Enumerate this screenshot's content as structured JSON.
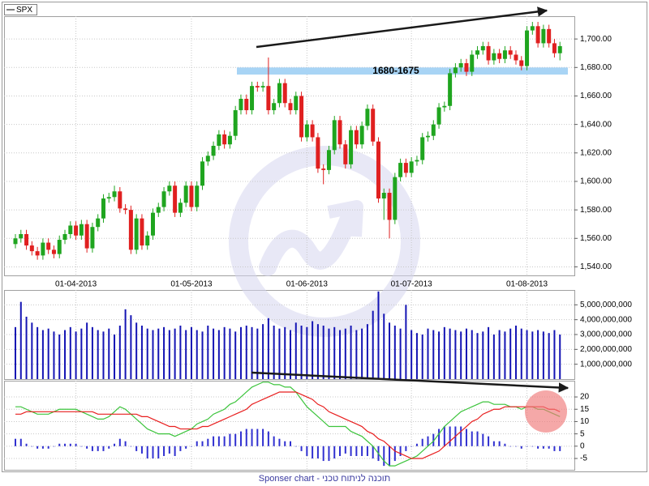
{
  "chart_data": [
    {
      "type": "candlestick",
      "name": "SPX",
      "up_color": "#1fa51f",
      "down_color": "#e02020",
      "grid": true,
      "categories": [
        null,
        null,
        null,
        null,
        null,
        null,
        null,
        null,
        null,
        null,
        null,
        "01-04-2013",
        null,
        null,
        null,
        null,
        null,
        null,
        null,
        null,
        null,
        null,
        null,
        null,
        null,
        null,
        null,
        null,
        null,
        null,
        null,
        null,
        "01-05-2013",
        null,
        null,
        null,
        null,
        null,
        null,
        null,
        null,
        null,
        null,
        null,
        null,
        null,
        null,
        null,
        null,
        null,
        null,
        null,
        null,
        "01-06-2013",
        null,
        null,
        null,
        null,
        null,
        null,
        null,
        null,
        null,
        null,
        null,
        null,
        null,
        null,
        null,
        null,
        null,
        null,
        "01-07-2013",
        null,
        null,
        null,
        null,
        null,
        null,
        null,
        null,
        null,
        null,
        null,
        null,
        null,
        null,
        null,
        null,
        null,
        null,
        null,
        null,
        "01-08-2013",
        null,
        null,
        null,
        null,
        null,
        null
      ],
      "open": [
        1556,
        1560,
        1563,
        1555,
        1551,
        1548,
        1557,
        1552,
        1549,
        1559,
        1563,
        1569,
        1562,
        1570,
        1553,
        1568,
        1574,
        1588,
        1589,
        1593,
        1581,
        1580,
        1552,
        1574,
        1555,
        1562,
        1578,
        1582,
        1593,
        1597,
        1578,
        1585,
        1597,
        1582,
        1597,
        1614,
        1618,
        1625,
        1633,
        1626,
        1632,
        1650,
        1658,
        1650,
        1667,
        1666,
        1667,
        1650,
        1655,
        1669,
        1655,
        1650,
        1660,
        1631,
        1640,
        1631,
        1609,
        1608,
        1622,
        1643,
        1626,
        1612,
        1636,
        1626,
        1639,
        1651,
        1628,
        1588,
        1592,
        1573,
        1603,
        1613,
        1606,
        1614,
        1615,
        1631,
        1632,
        1640,
        1652,
        1653,
        1676,
        1680,
        1683,
        1677,
        1689,
        1692,
        1695,
        1685,
        1690,
        1686,
        1692,
        1689,
        1685,
        1681,
        1706,
        1709,
        1697,
        1707,
        1697,
        1690
      ],
      "high": [
        1563,
        1566,
        1566,
        1558,
        1554,
        1560,
        1560,
        1555,
        1562,
        1566,
        1572,
        1572,
        1573,
        1573,
        1571,
        1577,
        1591,
        1592,
        1597,
        1596,
        1584,
        1583,
        1577,
        1577,
        1565,
        1581,
        1585,
        1596,
        1600,
        1600,
        1588,
        1600,
        1600,
        1600,
        1617,
        1621,
        1628,
        1636,
        1636,
        1635,
        1653,
        1661,
        1661,
        1670,
        1670,
        1670,
        1687,
        1658,
        1672,
        1672,
        1658,
        1663,
        1663,
        1643,
        1643,
        1634,
        1612,
        1625,
        1646,
        1646,
        1629,
        1639,
        1639,
        1642,
        1654,
        1654,
        1631,
        1595,
        1595,
        1606,
        1616,
        1616,
        1617,
        1618,
        1634,
        1635,
        1643,
        1655,
        1656,
        1679,
        1683,
        1686,
        1686,
        1692,
        1695,
        1698,
        1698,
        1693,
        1693,
        1695,
        1695,
        1692,
        1688,
        1709,
        1712,
        1712,
        1710,
        1710,
        1700,
        1698
      ],
      "low": [
        1553,
        1557,
        1552,
        1548,
        1545,
        1545,
        1549,
        1546,
        1546,
        1556,
        1560,
        1559,
        1559,
        1550,
        1550,
        1565,
        1571,
        1585,
        1586,
        1578,
        1577,
        1549,
        1549,
        1552,
        1552,
        1559,
        1575,
        1579,
        1590,
        1575,
        1575,
        1582,
        1579,
        1579,
        1594,
        1611,
        1615,
        1622,
        1623,
        1623,
        1629,
        1647,
        1647,
        1647,
        1663,
        1663,
        1647,
        1647,
        1652,
        1652,
        1647,
        1647,
        1628,
        1628,
        1628,
        1606,
        1598,
        1605,
        1619,
        1623,
        1609,
        1609,
        1623,
        1623,
        1636,
        1625,
        1585,
        1573,
        1560,
        1570,
        1600,
        1603,
        1603,
        1611,
        1612,
        1628,
        1629,
        1637,
        1649,
        1650,
        1673,
        1677,
        1674,
        1674,
        1686,
        1689,
        1682,
        1682,
        1683,
        1683,
        1686,
        1682,
        1678,
        1678,
        1703,
        1694,
        1694,
        1694,
        1687,
        1685
      ],
      "close": [
        1560,
        1563,
        1555,
        1551,
        1548,
        1557,
        1552,
        1549,
        1559,
        1563,
        1569,
        1562,
        1570,
        1553,
        1568,
        1574,
        1588,
        1589,
        1593,
        1581,
        1580,
        1552,
        1574,
        1555,
        1562,
        1578,
        1582,
        1593,
        1597,
        1578,
        1585,
        1597,
        1582,
        1597,
        1614,
        1618,
        1625,
        1633,
        1626,
        1632,
        1650,
        1658,
        1650,
        1667,
        1666,
        1667,
        1650,
        1655,
        1669,
        1655,
        1650,
        1660,
        1631,
        1640,
        1631,
        1609,
        1608,
        1622,
        1643,
        1626,
        1612,
        1636,
        1626,
        1639,
        1651,
        1628,
        1588,
        1592,
        1573,
        1603,
        1613,
        1606,
        1614,
        1615,
        1631,
        1632,
        1640,
        1652,
        1653,
        1676,
        1680,
        1683,
        1677,
        1689,
        1692,
        1695,
        1685,
        1690,
        1686,
        1692,
        1689,
        1685,
        1681,
        1706,
        1709,
        1697,
        1707,
        1697,
        1690,
        1695
      ],
      "ylim": [
        1534,
        1716
      ],
      "yticks": [
        {
          "value": 1540,
          "label": "1,540.00"
        },
        {
          "value": 1560,
          "label": "1,560.00"
        },
        {
          "value": 1580,
          "label": "1,580.00"
        },
        {
          "value": 1600,
          "label": "1,600.00"
        },
        {
          "value": 1620,
          "label": "1,620.00"
        },
        {
          "value": 1640,
          "label": "1,640.00"
        },
        {
          "value": 1660,
          "label": "1,660.00"
        },
        {
          "value": 1680,
          "label": "1,680.00"
        },
        {
          "value": 1700,
          "label": "1,700.00"
        }
      ],
      "zone": {
        "label": "1680-1675",
        "high": 1680,
        "low": 1675,
        "color": "#a8d4f5"
      }
    },
    {
      "type": "bar",
      "color": "#1414b4",
      "grid": true,
      "values": [
        3500000000.0,
        5200000000.0,
        4200000000.0,
        3800000000.0,
        3500000000.0,
        3300000000.0,
        3400000000.0,
        3200000000.0,
        3000000000.0,
        3300000000.0,
        3500000000.0,
        3200000000.0,
        3400000000.0,
        3800000000.0,
        3500000000.0,
        3300000000.0,
        3200000000.0,
        3400000000.0,
        3000000000.0,
        3600000000.0,
        4700000000.0,
        4300000000.0,
        3800000000.0,
        3600000000.0,
        3400000000.0,
        3300000000.0,
        3400000000.0,
        3500000000.0,
        3300000000.0,
        3400000000.0,
        3600000000.0,
        3300000000.0,
        3500000000.0,
        3300000000.0,
        3200000000.0,
        3600000000.0,
        3400000000.0,
        3300000000.0,
        3500000000.0,
        3400000000.0,
        3200000000.0,
        3500000000.0,
        3600000000.0,
        3500000000.0,
        3400000000.0,
        3700000000.0,
        4100000000.0,
        3600000000.0,
        3400000000.0,
        3500000000.0,
        3300000000.0,
        3800000000.0,
        3600000000.0,
        3500000000.0,
        3900000000.0,
        3700000000.0,
        3600000000.0,
        3400000000.0,
        3500000000.0,
        3300000000.0,
        3400000000.0,
        3600000000.0,
        3300000000.0,
        3400000000.0,
        3700000000.0,
        4600000000.0,
        5900000000.0,
        4400000000.0,
        3800000000.0,
        3600000000.0,
        3400000000.0,
        5000000000.0,
        3300000000.0,
        3100000000.0,
        3000000000.0,
        3400000000.0,
        3300000000.0,
        3200000000.0,
        3500000000.0,
        3400000000.0,
        3300000000.0,
        3200000000.0,
        3400000000.0,
        3300000000.0,
        3100000000.0,
        3200000000.0,
        3500000000.0,
        3000000000.0,
        3300000000.0,
        3200000000.0,
        3400000000.0,
        3600000000.0,
        3400000000.0,
        3300000000.0,
        3200000000.0,
        3300000000.0,
        3200000000.0,
        3100000000.0,
        3300000000.0,
        3000000000.0
      ],
      "ylim": [
        0,
        6000000000
      ],
      "yticks": [
        {
          "value": 1000000000,
          "label": "1,000,000,000"
        },
        {
          "value": 2000000000,
          "label": "2,000,000,000"
        },
        {
          "value": 3000000000,
          "label": "3,000,000,000"
        },
        {
          "value": 4000000000,
          "label": "4,000,000,000"
        },
        {
          "value": 5000000000,
          "label": "5,000,000,000"
        }
      ]
    },
    {
      "type": "macd",
      "grid": true,
      "series": [
        {
          "color": "#3cc43c",
          "values": [
            16,
            16,
            15,
            14,
            13,
            13,
            13,
            14,
            15,
            15,
            15,
            15,
            14,
            13,
            12,
            11,
            11,
            12,
            14,
            16,
            15,
            13,
            11,
            9,
            7,
            6,
            5,
            5,
            5,
            4,
            5,
            6,
            7,
            9,
            10,
            11,
            13,
            14,
            15,
            17,
            18,
            20,
            22,
            24,
            25,
            26,
            26,
            25,
            25,
            24,
            24,
            22,
            19,
            16,
            14,
            12,
            10,
            8,
            8,
            8,
            8,
            6,
            5,
            4,
            2,
            0,
            -3,
            -6,
            -8,
            -8,
            -7,
            -6,
            -5,
            -4,
            -2,
            0,
            2,
            5,
            8,
            10,
            12,
            14,
            15,
            16,
            17,
            18,
            18,
            17,
            17,
            17,
            16,
            16,
            15,
            16,
            16,
            15,
            15,
            14,
            13,
            12
          ]
        },
        {
          "color": "#e81e1e",
          "values": [
            13,
            13,
            14,
            14,
            14,
            14,
            14,
            14,
            14,
            14,
            14,
            14,
            14,
            14,
            14,
            13,
            13,
            13,
            13,
            13,
            13,
            13,
            13,
            12,
            12,
            11,
            10,
            9,
            8,
            8,
            7,
            7,
            7,
            7,
            8,
            8,
            9,
            10,
            11,
            12,
            13,
            14,
            15,
            17,
            18,
            19,
            20,
            21,
            22,
            22,
            22,
            22,
            21,
            20,
            19,
            17,
            16,
            14,
            13,
            12,
            11,
            10,
            9,
            8,
            6,
            5,
            3,
            2,
            0,
            -2,
            -3,
            -4,
            -5,
            -5,
            -5,
            -4,
            -3,
            -2,
            0,
            2,
            4,
            6,
            8,
            10,
            11,
            13,
            14,
            15,
            15,
            16,
            16,
            16,
            16,
            16,
            16,
            16,
            16,
            15,
            15,
            14
          ]
        }
      ],
      "histogram": {
        "color": "#3030d0",
        "values": [
          3,
          3,
          1,
          0,
          -1,
          -1,
          -1,
          0,
          1,
          1,
          1,
          1,
          0,
          -1,
          -2,
          -2,
          -2,
          -1,
          1,
          3,
          2,
          0,
          -2,
          -3,
          -5,
          -5,
          -5,
          -4,
          -3,
          -4,
          -2,
          -1,
          0,
          2,
          2,
          3,
          4,
          4,
          4,
          5,
          5,
          6,
          7,
          7,
          7,
          7,
          6,
          4,
          3,
          2,
          2,
          0,
          -2,
          -4,
          -5,
          -5,
          -6,
          -6,
          -5,
          -4,
          -3,
          -4,
          -4,
          -4,
          -4,
          -5,
          -6,
          -8,
          -8,
          -6,
          -4,
          -2,
          0,
          1,
          3,
          4,
          5,
          7,
          8,
          8,
          8,
          8,
          7,
          6,
          6,
          5,
          4,
          2,
          2,
          1,
          0,
          0,
          -1,
          0,
          0,
          -1,
          -1,
          -1,
          -2,
          -2
        ]
      },
      "ylim": [
        -9.6,
        26.6
      ],
      "yticks": [
        -5,
        0,
        5,
        10,
        15,
        20
      ]
    }
  ],
  "footer": "Sponser chart - תוכנה לניתוח טכני"
}
